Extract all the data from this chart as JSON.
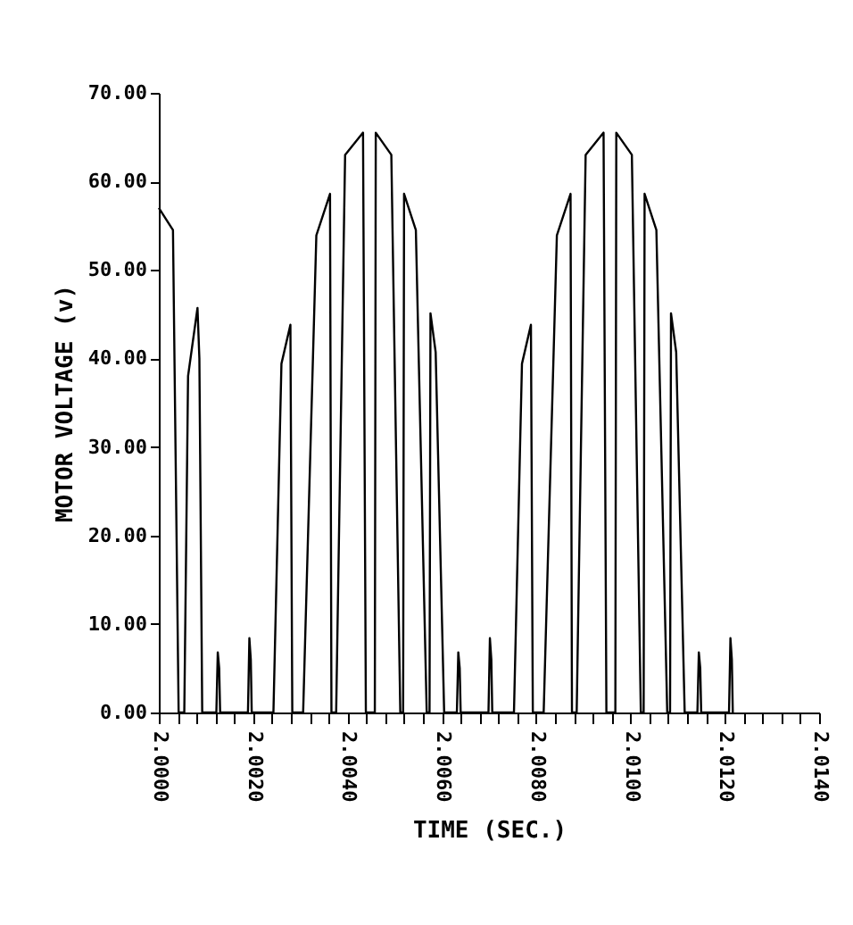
{
  "chart_data": {
    "type": "line",
    "xlabel": "TIME (SEC.)",
    "ylabel": "MOTOR VOLTAGE (v)",
    "line_style": "solid",
    "marker": "none",
    "grid": false,
    "x": [
      2.0,
      2.0003,
      2.00042,
      2.00054,
      2.00062,
      2.00082,
      2.00086,
      2.00092,
      2.00122,
      2.00125,
      2.00128,
      2.0013,
      2.00189,
      2.00192,
      2.00195,
      2.00197,
      2.00243,
      2.0026,
      2.00279,
      2.00283,
      2.00306,
      2.00334,
      2.00363,
      2.00366,
      2.00376,
      2.00395,
      2.00433,
      2.00439,
      2.00458,
      2.0046,
      2.00493,
      2.00512,
      2.00518,
      2.0052,
      2.00545,
      2.00568,
      2.00574,
      2.00576,
      2.00587,
      2.00605,
      2.00632,
      2.00635,
      2.00638,
      2.0064,
      2.00699,
      2.00702,
      2.00705,
      2.00707,
      2.00753,
      2.0077,
      2.00789,
      2.00793,
      2.00816,
      2.00844,
      2.00873,
      2.00876,
      2.00886,
      2.00905,
      2.00943,
      2.00949,
      2.00968,
      2.0097,
      2.01003,
      2.01022,
      2.01028,
      2.0103,
      2.01055,
      2.01078,
      2.01084,
      2.01086,
      2.01097,
      2.01115,
      2.01142,
      2.01145,
      2.01148,
      2.0115,
      2.01209,
      2.01212,
      2.01215,
      2.01217
    ],
    "series": [
      {
        "color": "#000000",
        "values": [
          57,
          54.5,
          0,
          0,
          38,
          45.7,
          40,
          0,
          0,
          6.8,
          5,
          0,
          0,
          8.4,
          6,
          0,
          0,
          39.4,
          43.8,
          0,
          0,
          53.9,
          58.6,
          0,
          0,
          63,
          65.5,
          0,
          0,
          65.5,
          63,
          0,
          0,
          58.6,
          54.5,
          0,
          0,
          45.1,
          40.7,
          0,
          0,
          6.8,
          5,
          0,
          0,
          8.4,
          6,
          0,
          0,
          39.4,
          43.8,
          0,
          0,
          53.9,
          58.6,
          0,
          0,
          63,
          65.5,
          0,
          0,
          65.5,
          63,
          0,
          0,
          58.6,
          54.5,
          0,
          0,
          45.1,
          40.7,
          0,
          0,
          6.8,
          5,
          0,
          0,
          8.4,
          6,
          0
        ]
      }
    ],
    "xlim": [
      2.0,
      2.014
    ],
    "xticks": [
      {
        "value": 2.0,
        "label": "2.0000"
      },
      {
        "value": 2.0004,
        "label": null
      },
      {
        "value": 2.0008,
        "label": null
      },
      {
        "value": 2.0012,
        "label": null
      },
      {
        "value": 2.0016,
        "label": null
      },
      {
        "value": 2.002,
        "label": "2.0020"
      },
      {
        "value": 2.0024,
        "label": null
      },
      {
        "value": 2.0028,
        "label": null
      },
      {
        "value": 2.0032,
        "label": null
      },
      {
        "value": 2.0036,
        "label": null
      },
      {
        "value": 2.004,
        "label": "2.0040"
      },
      {
        "value": 2.0044,
        "label": null
      },
      {
        "value": 2.0048,
        "label": null
      },
      {
        "value": 2.0052,
        "label": null
      },
      {
        "value": 2.0056,
        "label": null
      },
      {
        "value": 2.006,
        "label": "2.0060"
      },
      {
        "value": 2.0064,
        "label": null
      },
      {
        "value": 2.0068,
        "label": null
      },
      {
        "value": 2.0072,
        "label": null
      },
      {
        "value": 2.0076,
        "label": null
      },
      {
        "value": 2.008,
        "label": "2.0080"
      },
      {
        "value": 2.0084,
        "label": null
      },
      {
        "value": 2.0088,
        "label": null
      },
      {
        "value": 2.0092,
        "label": null
      },
      {
        "value": 2.0096,
        "label": null
      },
      {
        "value": 2.01,
        "label": "2.0100"
      },
      {
        "value": 2.0104,
        "label": null
      },
      {
        "value": 2.0108,
        "label": null
      },
      {
        "value": 2.0112,
        "label": null
      },
      {
        "value": 2.0116,
        "label": null
      },
      {
        "value": 2.012,
        "label": "2.0120"
      },
      {
        "value": 2.0124,
        "label": null
      },
      {
        "value": 2.0128,
        "label": null
      },
      {
        "value": 2.0132,
        "label": null
      },
      {
        "value": 2.0136,
        "label": null
      },
      {
        "value": 2.014,
        "label": "2.0140"
      }
    ],
    "ylim": [
      0,
      70
    ],
    "yticks": [
      {
        "value": 0,
        "label": "0.00"
      },
      {
        "value": 10,
        "label": "10.00"
      },
      {
        "value": 20,
        "label": "20.00"
      },
      {
        "value": 30,
        "label": "30.00"
      },
      {
        "value": 40,
        "label": "40.00"
      },
      {
        "value": 50,
        "label": "50.00"
      },
      {
        "value": 60,
        "label": "60.00"
      },
      {
        "value": 70,
        "label": "70.00"
      }
    ]
  }
}
